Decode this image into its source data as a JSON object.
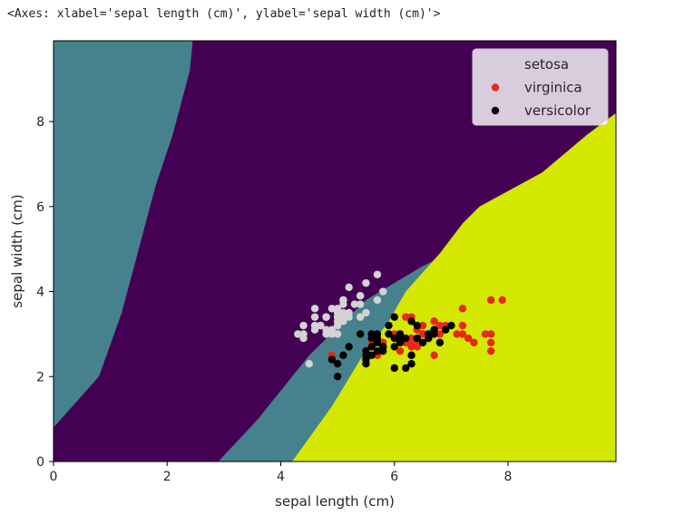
{
  "output_text": "<Axes: xlabel='sepal length (cm)', ylabel='sepal width (cm)'>",
  "chart_data": {
    "type": "scatter",
    "title": "",
    "xlabel": "sepal length (cm)",
    "ylabel": "sepal width (cm)",
    "xlim": [
      0,
      9.9
    ],
    "ylim": [
      0,
      9.9
    ],
    "xticks": [
      0,
      2,
      4,
      6,
      8
    ],
    "yticks": [
      0,
      2,
      4,
      6,
      8
    ],
    "grid": false,
    "legend_placement": "upper right",
    "background_regions": {
      "description_colors": {
        "setosa": "#46818e",
        "versicolor_region": "#440154",
        "virginica": "#d4e800"
      }
    },
    "series": [
      {
        "name": "setosa",
        "color": "#d3d3d3",
        "points": [
          [
            5.1,
            3.5
          ],
          [
            4.9,
            3.0
          ],
          [
            4.7,
            3.2
          ],
          [
            4.6,
            3.1
          ],
          [
            5.0,
            3.6
          ],
          [
            5.4,
            3.9
          ],
          [
            4.6,
            3.4
          ],
          [
            5.0,
            3.4
          ],
          [
            4.4,
            2.9
          ],
          [
            4.9,
            3.1
          ],
          [
            5.4,
            3.7
          ],
          [
            4.8,
            3.4
          ],
          [
            4.8,
            3.0
          ],
          [
            4.3,
            3.0
          ],
          [
            5.8,
            4.0
          ],
          [
            5.7,
            4.4
          ],
          [
            5.4,
            3.9
          ],
          [
            5.1,
            3.5
          ],
          [
            5.7,
            3.8
          ],
          [
            5.1,
            3.8
          ],
          [
            5.4,
            3.4
          ],
          [
            5.1,
            3.7
          ],
          [
            4.6,
            3.6
          ],
          [
            5.1,
            3.3
          ],
          [
            4.8,
            3.4
          ],
          [
            5.0,
            3.0
          ],
          [
            5.0,
            3.4
          ],
          [
            5.2,
            3.5
          ],
          [
            5.2,
            3.4
          ],
          [
            4.7,
            3.2
          ],
          [
            4.8,
            3.1
          ],
          [
            5.4,
            3.4
          ],
          [
            5.2,
            4.1
          ],
          [
            5.5,
            4.2
          ],
          [
            4.9,
            3.1
          ],
          [
            5.0,
            3.2
          ],
          [
            5.5,
            3.5
          ],
          [
            4.9,
            3.6
          ],
          [
            4.4,
            3.0
          ],
          [
            5.1,
            3.4
          ],
          [
            5.0,
            3.5
          ],
          [
            4.5,
            2.3
          ],
          [
            4.4,
            3.2
          ],
          [
            5.0,
            3.5
          ],
          [
            5.1,
            3.8
          ],
          [
            4.8,
            3.0
          ],
          [
            5.1,
            3.8
          ],
          [
            4.6,
            3.2
          ],
          [
            5.3,
            3.7
          ],
          [
            5.0,
            3.3
          ]
        ]
      },
      {
        "name": "virginica",
        "color": "#e8281a",
        "points": [
          [
            6.3,
            3.3
          ],
          [
            5.8,
            2.7
          ],
          [
            7.1,
            3.0
          ],
          [
            6.3,
            2.9
          ],
          [
            6.5,
            3.0
          ],
          [
            7.6,
            3.0
          ],
          [
            4.9,
            2.5
          ],
          [
            7.3,
            2.9
          ],
          [
            6.7,
            2.5
          ],
          [
            7.2,
            3.6
          ],
          [
            6.5,
            3.2
          ],
          [
            6.4,
            2.7
          ],
          [
            6.8,
            3.0
          ],
          [
            5.7,
            2.5
          ],
          [
            5.8,
            2.8
          ],
          [
            6.4,
            3.2
          ],
          [
            6.5,
            3.0
          ],
          [
            7.7,
            3.8
          ],
          [
            7.7,
            2.6
          ],
          [
            6.0,
            2.2
          ],
          [
            6.9,
            3.2
          ],
          [
            5.6,
            2.8
          ],
          [
            7.7,
            2.8
          ],
          [
            6.3,
            2.7
          ],
          [
            6.7,
            3.3
          ],
          [
            7.2,
            3.2
          ],
          [
            6.2,
            2.8
          ],
          [
            6.1,
            3.0
          ],
          [
            6.4,
            2.8
          ],
          [
            7.2,
            3.0
          ],
          [
            7.4,
            2.8
          ],
          [
            7.9,
            3.8
          ],
          [
            6.4,
            2.8
          ],
          [
            6.3,
            2.8
          ],
          [
            6.1,
            2.6
          ],
          [
            7.7,
            3.0
          ],
          [
            6.3,
            3.4
          ],
          [
            6.4,
            3.1
          ],
          [
            6.0,
            3.0
          ],
          [
            6.9,
            3.1
          ],
          [
            6.7,
            3.1
          ],
          [
            6.9,
            3.1
          ],
          [
            5.8,
            2.7
          ],
          [
            6.8,
            3.2
          ],
          [
            6.7,
            3.3
          ],
          [
            6.7,
            3.0
          ],
          [
            6.3,
            2.5
          ],
          [
            6.5,
            3.0
          ],
          [
            6.2,
            3.4
          ],
          [
            5.9,
            3.0
          ]
        ]
      },
      {
        "name": "versicolor",
        "color": "#000000",
        "points": [
          [
            7.0,
            3.2
          ],
          [
            6.4,
            3.2
          ],
          [
            6.9,
            3.1
          ],
          [
            5.5,
            2.3
          ],
          [
            6.5,
            2.8
          ],
          [
            5.7,
            2.8
          ],
          [
            6.3,
            3.3
          ],
          [
            4.9,
            2.4
          ],
          [
            6.6,
            2.9
          ],
          [
            5.2,
            2.7
          ],
          [
            5.0,
            2.0
          ],
          [
            5.9,
            3.0
          ],
          [
            6.0,
            2.2
          ],
          [
            6.1,
            2.9
          ],
          [
            5.6,
            2.9
          ],
          [
            6.7,
            3.1
          ],
          [
            5.6,
            3.0
          ],
          [
            5.8,
            2.7
          ],
          [
            6.2,
            2.2
          ],
          [
            5.6,
            2.5
          ],
          [
            5.9,
            3.2
          ],
          [
            6.1,
            2.8
          ],
          [
            6.3,
            2.5
          ],
          [
            6.1,
            2.8
          ],
          [
            6.4,
            2.9
          ],
          [
            6.6,
            3.0
          ],
          [
            6.8,
            2.8
          ],
          [
            6.7,
            3.0
          ],
          [
            6.0,
            2.9
          ],
          [
            5.7,
            2.6
          ],
          [
            5.5,
            2.4
          ],
          [
            5.5,
            2.4
          ],
          [
            5.8,
            2.7
          ],
          [
            6.0,
            2.7
          ],
          [
            5.4,
            3.0
          ],
          [
            6.0,
            3.4
          ],
          [
            6.7,
            3.1
          ],
          [
            6.3,
            2.3
          ],
          [
            5.6,
            3.0
          ],
          [
            5.5,
            2.5
          ],
          [
            5.5,
            2.6
          ],
          [
            6.1,
            3.0
          ],
          [
            5.8,
            2.6
          ],
          [
            5.0,
            2.3
          ],
          [
            5.6,
            2.7
          ],
          [
            5.7,
            3.0
          ],
          [
            5.7,
            2.9
          ],
          [
            6.2,
            2.9
          ],
          [
            5.1,
            2.5
          ],
          [
            5.7,
            2.8
          ]
        ]
      }
    ]
  }
}
